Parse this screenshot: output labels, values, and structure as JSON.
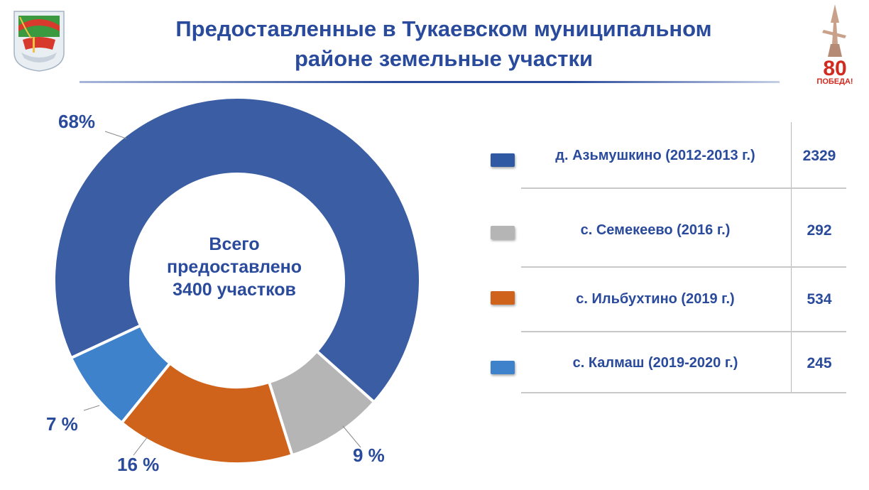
{
  "header": {
    "title_line1": "Предоставленные в Тукаевском муниципальном",
    "title_line2": "районе земельные участки",
    "right_logo_number": "80",
    "right_logo_text": "ПОБЕДА!"
  },
  "center_label": {
    "line1": "Всего",
    "line2": "предоставлено",
    "line3": "3400 участков"
  },
  "chart_data": {
    "type": "pie",
    "title": "",
    "categories": [
      "д. Азьмушкино (2012-2013 г.)",
      "с. Семекеево (2016 г.)",
      "с. Ильбухтино (2019 г.)",
      "с. Калмаш (2019-2020 г.)"
    ],
    "values": [
      2329,
      292,
      534,
      245
    ],
    "percent_labels": [
      "68%",
      "9 %",
      "16 %",
      "7 %"
    ],
    "colors": [
      "#3a5da4",
      "#b5b5b5",
      "#d0631c",
      "#3e82cc"
    ],
    "hole": "donut",
    "total_label": "3400 участков"
  },
  "table": {
    "rows": [
      {
        "name": "д. Азьмушкино  (2012-2013  г.)",
        "value": "2329",
        "color": "#3a5da4"
      },
      {
        "name": "с. Семекеево (2016 г.)",
        "value": "292",
        "color": "#b5b5b5"
      },
      {
        "name": "с. Ильбухтино  (2019 г.)",
        "value": "534",
        "color": "#d0631c"
      },
      {
        "name": "с. Калмаш  (2019-2020  г.)",
        "value": "245",
        "color": "#3e82cc"
      }
    ]
  },
  "colors": {
    "title": "#2a4a9c",
    "background": "#ffffff"
  }
}
